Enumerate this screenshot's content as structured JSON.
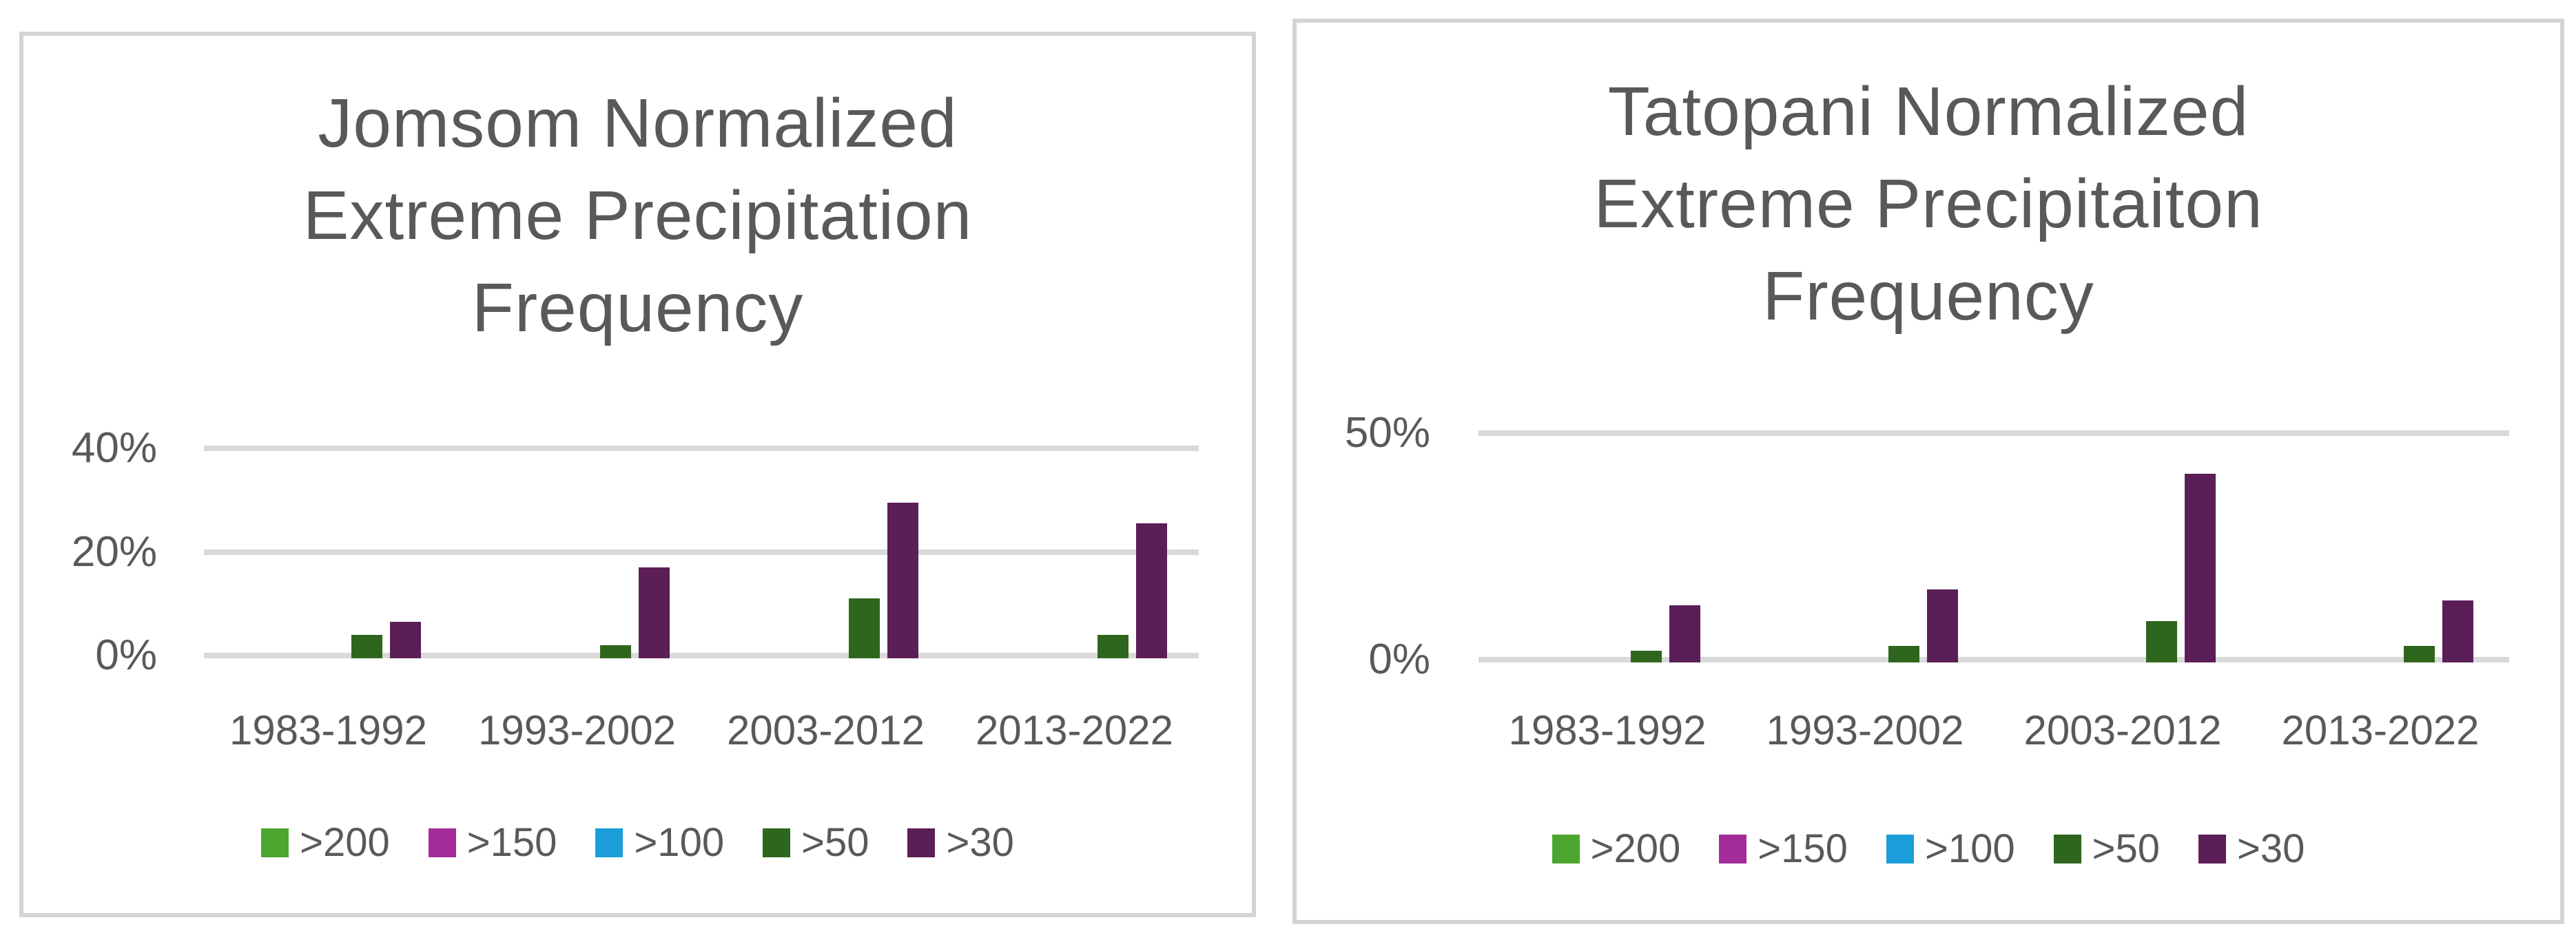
{
  "colors": {
    "background": "#FFFFFF",
    "card_border": "#D4D4D4",
    "gridline": "#D9D9D9",
    "text": "#595959"
  },
  "legend": {
    "items": [
      {
        "label": ">200",
        "color": "#4CA62F"
      },
      {
        "label": ">150",
        "color": "#A32C99"
      },
      {
        "label": ">100",
        "color": "#1B9DD9"
      },
      {
        "label": ">50",
        "color": "#2F661D"
      },
      {
        "label": ">30",
        "color": "#5C1E56"
      }
    ]
  },
  "chart_data": [
    {
      "type": "bar",
      "title": "Jomsom Normalized\nExtreme Precipitation\nFrequency",
      "categories": [
        "1983-1992",
        "1993-2002",
        "2003-2012",
        "2013-2022"
      ],
      "series": [
        {
          "name": ">200",
          "color": "#4CA62F",
          "values": [
            0,
            0,
            0,
            0
          ]
        },
        {
          "name": ">150",
          "color": "#A32C99",
          "values": [
            0,
            0,
            0,
            0
          ]
        },
        {
          "name": ">100",
          "color": "#1B9DD9",
          "values": [
            0,
            0,
            0,
            0
          ]
        },
        {
          "name": ">50",
          "color": "#2F661D",
          "values": [
            4,
            2,
            11,
            4
          ]
        },
        {
          "name": ">30",
          "color": "#5C1E56",
          "values": [
            6.5,
            17,
            29.5,
            25.5
          ]
        }
      ],
      "ylabel": "",
      "xlabel": "",
      "unit": "%",
      "ylim": [
        0,
        40
      ],
      "yticks": [
        {
          "value": 0,
          "label": "0%"
        },
        {
          "value": 20,
          "label": "20%"
        },
        {
          "value": 40,
          "label": "40%"
        }
      ],
      "grid": true,
      "legend_position": "bottom"
    },
    {
      "type": "bar",
      "title": "Tatopani Normalized\nExtreme Precipitaiton\nFrequency",
      "categories": [
        "1983-1992",
        "1993-2002",
        "2003-2012",
        "2013-2022"
      ],
      "series": [
        {
          "name": ">200",
          "color": "#4CA62F",
          "values": [
            0,
            0,
            0,
            0
          ]
        },
        {
          "name": ">150",
          "color": "#A32C99",
          "values": [
            0,
            0,
            0,
            0
          ]
        },
        {
          "name": ">100",
          "color": "#1B9DD9",
          "values": [
            0,
            0,
            0,
            0
          ]
        },
        {
          "name": ">50",
          "color": "#2F661D",
          "values": [
            2,
            3,
            8.5,
            3
          ]
        },
        {
          "name": ">30",
          "color": "#5C1E56",
          "values": [
            12,
            15.5,
            41,
            13
          ]
        }
      ],
      "ylabel": "",
      "xlabel": "",
      "unit": "%",
      "ylim": [
        0,
        50
      ],
      "yticks": [
        {
          "value": 0,
          "label": "0%"
        },
        {
          "value": 50,
          "label": "50%"
        }
      ],
      "grid": true,
      "legend_position": "bottom"
    }
  ]
}
